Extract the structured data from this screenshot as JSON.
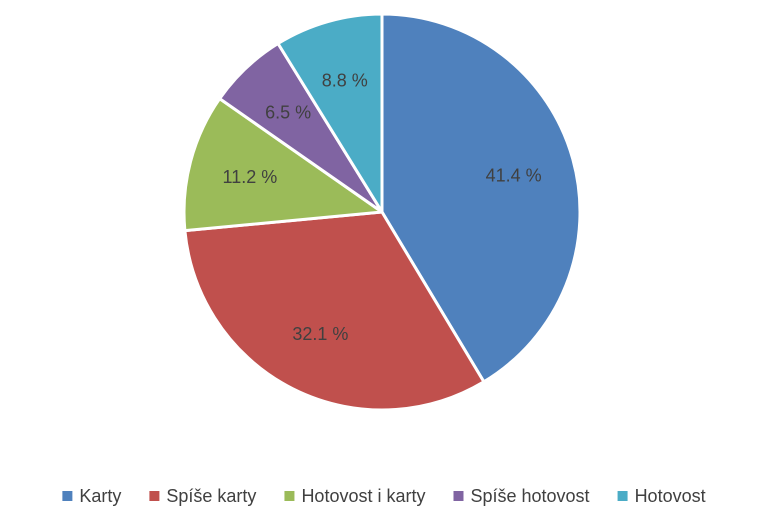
{
  "chart_data": {
    "type": "pie",
    "title": "",
    "legend_position": "bottom",
    "slices": [
      {
        "name": "Karty",
        "value": 41.4,
        "label": "41.4 %",
        "color": "#4F81BD"
      },
      {
        "name": "Spíše karty",
        "value": 32.1,
        "label": "32.1 %",
        "color": "#C0504D"
      },
      {
        "name": "Hotovost i karty",
        "value": 11.2,
        "label": "11.2 %",
        "color": "#9BBB59"
      },
      {
        "name": "Spíše hotovost",
        "value": 6.5,
        "label": "6.5 %",
        "color": "#8064A2"
      },
      {
        "name": "Hotovost",
        "value": 8.8,
        "label": "8.8 %",
        "color": "#4BACC6"
      }
    ]
  }
}
